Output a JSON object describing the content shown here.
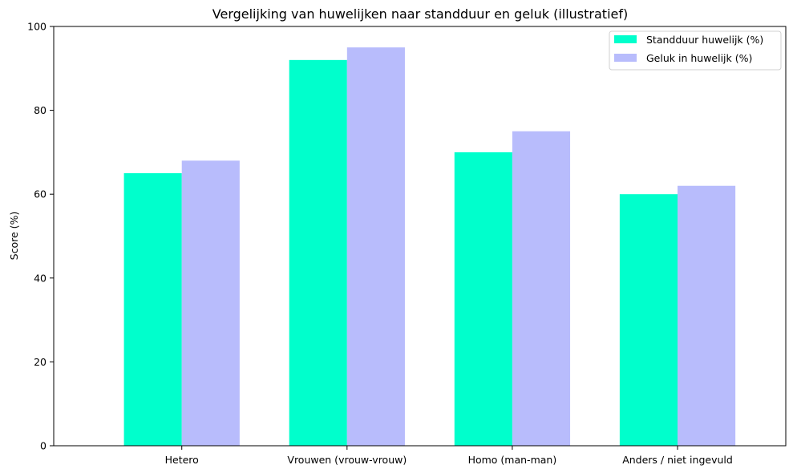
{
  "chart_data": {
    "type": "bar",
    "title": "Vergelijking van huwelijken naar standduur en geluk (illustratief)",
    "xlabel": "",
    "ylabel": "Score (%)",
    "ylim": [
      0,
      100
    ],
    "yticks": [
      0,
      20,
      40,
      60,
      80,
      100
    ],
    "categories": [
      "Hetero",
      "Vrouwen (vrouw-vrouw)",
      "Homo (man-man)",
      "Anders / niet ingevuld"
    ],
    "series": [
      {
        "name": "Standduur huwelijk (%)",
        "color": "#00ffcc",
        "values": [
          65,
          92,
          70,
          60
        ]
      },
      {
        "name": "Geluk in huwelijk (%)",
        "color": "#b8bcfc",
        "values": [
          68,
          95,
          75,
          62
        ]
      }
    ],
    "legend_position": "top-right",
    "grid": false
  }
}
